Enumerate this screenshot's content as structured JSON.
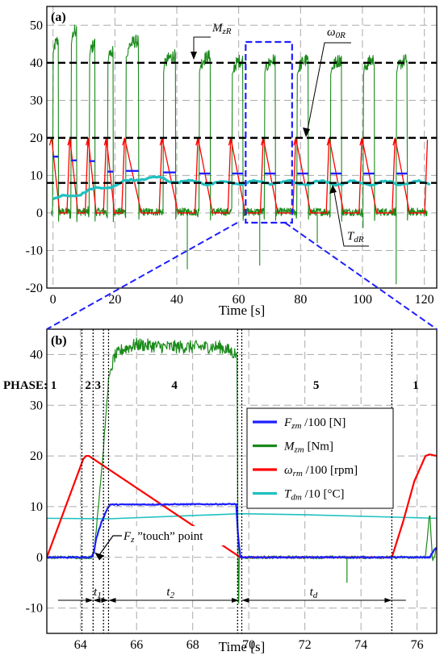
{
  "chart_data": [
    {
      "panel_label": "(a)",
      "type": "line",
      "xlabel": "Time [s]",
      "xlim": [
        -2,
        124
      ],
      "ylim": [
        -20,
        55
      ],
      "x_ticks": [
        0,
        20,
        40,
        60,
        80,
        100,
        120
      ],
      "y_ticks": [
        -20,
        -10,
        0,
        10,
        20,
        30,
        40,
        50
      ],
      "grid": true,
      "reference_lines": [
        {
          "label": "M_zR",
          "y": 40,
          "style": "dashed",
          "color": "#000000"
        },
        {
          "label": "ω_0R",
          "y": 20,
          "style": "dashed",
          "color": "#000000"
        },
        {
          "label": "T_dR",
          "y": 8,
          "style": "dashed",
          "color": "#000000"
        }
      ],
      "annotations": [
        {
          "text": "M",
          "sub": "zR",
          "points_to_y": 40
        },
        {
          "text": "ω",
          "sub": "0R",
          "points_to_y": 20
        },
        {
          "text": "T",
          "sub": "dR",
          "points_to_y": 8
        }
      ],
      "zoom_window_x": [
        62,
        77
      ],
      "cycle_starts": [
        -0.5,
        5.4,
        11.3,
        17.2,
        23.1,
        35.2,
        46.8,
        57.4,
        67.9,
        78.4,
        89.2,
        99.8,
        110.5,
        121.0
      ],
      "series": [
        {
          "name": "F_zm /100 [N]",
          "color": "#1f1fff",
          "cycle_plateau": 10.5
        },
        {
          "name": "M_zm [Nm]",
          "color": "#1a8a1a",
          "cycle_plateau": [
            47,
            50,
            46,
            44,
            46,
            42,
            42,
            41,
            41,
            41,
            41,
            41,
            41
          ]
        },
        {
          "name": "ω_rm /100 [rpm]",
          "color": "#ff0000",
          "cycle_peak": 20
        },
        {
          "name": "T_dm /10 [°C]",
          "color": "#20c0c0",
          "x": [
            0,
            10,
            20,
            30,
            40,
            50,
            60,
            70,
            80,
            90,
            100,
            110,
            120
          ],
          "y": [
            3.5,
            5.5,
            7.5,
            9.5,
            8.5,
            8.0,
            8.0,
            8.2,
            8.0,
            8.0,
            8.0,
            8.0,
            8.0
          ]
        }
      ]
    },
    {
      "panel_label": "(b)",
      "type": "line",
      "xlabel": "Time [s]",
      "xlim": [
        62.8,
        76.7
      ],
      "ylim": [
        -15,
        45
      ],
      "x_ticks": [
        64,
        66,
        68,
        70,
        72,
        74,
        76
      ],
      "y_ticks": [
        -10,
        0,
        10,
        20,
        30,
        40
      ],
      "grid": true,
      "legend_position": "center-right",
      "phase_prefix": "PHASE: 1",
      "phases": [
        {
          "label": "2",
          "x": 64.27
        },
        {
          "label": "3",
          "x": 64.62
        },
        {
          "label": "4",
          "x": 67.35
        },
        {
          "label": "5",
          "x": 72.4
        },
        {
          "label": "1",
          "x": 75.95
        }
      ],
      "phase_boundaries": [
        64.05,
        64.45,
        64.82,
        65.0,
        69.6,
        69.75,
        75.1
      ],
      "intervals": [
        {
          "label": "t",
          "sub": "1",
          "from": 64.45,
          "to": 65.0
        },
        {
          "label": "t",
          "sub": "2",
          "from": 65.0,
          "to": 69.65
        },
        {
          "label": "t",
          "sub": "d",
          "from": 69.75,
          "to": 75.1
        }
      ],
      "touch_annotation": {
        "text": "F",
        "sub": "z",
        "rest": " ”touch” point",
        "points_to": [
          64.5,
          1.0
        ]
      },
      "series": [
        {
          "name": "F",
          "sub": "zm",
          "unit": " /100 [N]",
          "color": "#1f1fff",
          "x": [
            62.8,
            64.3,
            64.42,
            64.48,
            64.55,
            64.75,
            64.95,
            65.05,
            69.55,
            69.62,
            69.7,
            76.45,
            76.55,
            76.7
          ],
          "y": [
            0,
            0,
            0.2,
            1.0,
            3.5,
            7.0,
            9.5,
            10.4,
            10.5,
            4.0,
            0,
            0,
            1.0,
            2.0
          ]
        },
        {
          "name": "M",
          "sub": "zm",
          "unit": " [Nm]",
          "color": "#1a8a1a",
          "x": [
            62.8,
            64.4,
            64.5,
            64.8,
            65.0,
            65.2,
            65.5,
            66.0,
            67.0,
            68.0,
            69.0,
            69.58,
            69.63,
            69.66,
            69.7,
            76.3,
            76.45,
            76.55,
            76.7
          ],
          "y": [
            0,
            0,
            2,
            20,
            35,
            39.5,
            41,
            42,
            41.5,
            41.5,
            41.5,
            40,
            -14,
            0,
            0,
            0,
            9,
            -1,
            2
          ]
        },
        {
          "name": "ω",
          "sub": "rm",
          "unit": " /100 [rpm]",
          "color": "#ff0000",
          "x": [
            62.8,
            64.1,
            64.2,
            64.3,
            69.7,
            75.1,
            75.5,
            75.9,
            76.3,
            76.45,
            76.7
          ],
          "y": [
            0,
            19.4,
            20,
            20,
            0,
            0,
            7,
            15,
            20,
            20.3,
            20
          ]
        },
        {
          "name": "T",
          "sub": "dm",
          "unit": " /10  [°C]",
          "color": "#20c0c0",
          "x": [
            62.8,
            65.0,
            69.7,
            72.0,
            76.7
          ],
          "y": [
            7.7,
            7.6,
            8.6,
            8.4,
            7.7
          ]
        }
      ]
    }
  ]
}
